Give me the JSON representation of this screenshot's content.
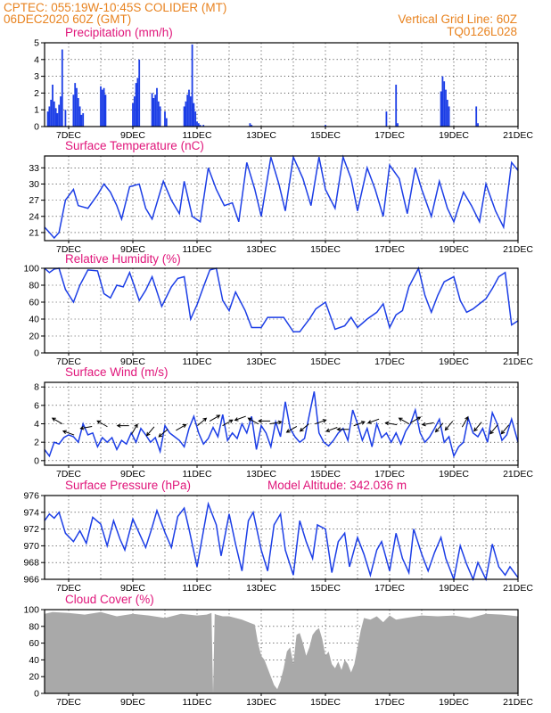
{
  "header": {
    "line1": "CPTEC:   055:19W-10:45S   COLIDER (MT)",
    "line2": "06DEC2020 60Z (GMT)",
    "grid_note": "Vertical Grid Line: 60Z",
    "code": "TQ0126L028"
  },
  "x_axis": {
    "start_day": 6.25,
    "end_day": 21.0,
    "date_labels": [
      {
        "day": 7,
        "label": "7DEC"
      },
      {
        "day": 9,
        "label": "9DEC"
      },
      {
        "day": 11,
        "label": "11DEC"
      },
      {
        "day": 13,
        "label": "13DEC"
      },
      {
        "day": 15,
        "label": "15DEC"
      },
      {
        "day": 17,
        "label": "17DEC"
      },
      {
        "day": 19,
        "label": "19DEC"
      },
      {
        "day": 21,
        "label": "21DEC"
      }
    ]
  },
  "colors": {
    "series": "#1c3ee6",
    "cloud": "#a9a9a9",
    "title": "#e0157a",
    "header": "#e8821e"
  },
  "chart_data": [
    {
      "type": "bar",
      "title": "Precipitation (mm/h)",
      "ylim": [
        0,
        5
      ],
      "yticks": [
        0,
        1,
        2,
        3,
        4,
        5
      ],
      "grid": true,
      "x": [
        6.35,
        6.4,
        6.45,
        6.5,
        6.55,
        6.6,
        6.65,
        6.7,
        6.75,
        6.8,
        6.9,
        7.15,
        7.2,
        7.25,
        7.3,
        7.35,
        7.4,
        7.45,
        8.0,
        8.05,
        8.1,
        8.15,
        9.0,
        9.05,
        9.1,
        9.15,
        9.2,
        9.6,
        9.65,
        9.7,
        9.75,
        9.8,
        9.85,
        10.0,
        10.05,
        10.6,
        10.65,
        10.7,
        10.75,
        10.8,
        10.85,
        10.9,
        10.95,
        11.0,
        11.05,
        11.1,
        11.2,
        12.65,
        12.7,
        15.0,
        16.9,
        17.2,
        17.25,
        18.6,
        18.65,
        18.7,
        18.75,
        18.8,
        18.85,
        19.7,
        19.75
      ],
      "values": [
        0.9,
        1.2,
        1.6,
        2.5,
        1.5,
        1.1,
        0.8,
        1.3,
        1.8,
        4.6,
        1.0,
        1.9,
        2.6,
        2.3,
        1.7,
        1.2,
        0.7,
        0.8,
        2.4,
        2.2,
        2.3,
        1.9,
        1.4,
        1.8,
        2.6,
        2.9,
        4.0,
        2.0,
        1.7,
        1.9,
        2.3,
        1.5,
        1.2,
        0.9,
        0.5,
        1.2,
        1.5,
        1.9,
        2.2,
        1.8,
        4.9,
        1.4,
        0.9,
        0.3,
        0.2,
        0.1,
        0.1,
        0.2,
        0.1,
        0.1,
        0.9,
        2.5,
        0.2,
        2.1,
        3.0,
        2.7,
        2.2,
        1.6,
        1.2,
        1.2,
        0.2
      ]
    },
    {
      "type": "line",
      "title": "Surface Temperature (nC)",
      "ylim": [
        19.5,
        35.2
      ],
      "yticks": [
        21,
        24,
        27,
        30,
        33
      ],
      "grid": true,
      "x": [
        6.25,
        6.4,
        6.55,
        6.7,
        6.9,
        7.15,
        7.3,
        7.6,
        7.9,
        8.1,
        8.3,
        8.5,
        8.65,
        8.9,
        9.2,
        9.4,
        9.6,
        9.95,
        10.2,
        10.45,
        10.6,
        10.85,
        11.1,
        11.35,
        11.6,
        11.85,
        12.1,
        12.3,
        12.55,
        12.8,
        13.0,
        13.3,
        13.55,
        13.75,
        14.0,
        14.3,
        14.55,
        14.8,
        15.0,
        15.3,
        15.55,
        15.8,
        16.0,
        16.3,
        16.55,
        16.8,
        17.0,
        17.3,
        17.55,
        17.8,
        18.0,
        18.3,
        18.55,
        18.8,
        19.0,
        19.3,
        19.55,
        19.8,
        20.0,
        20.3,
        20.55,
        20.8,
        21.0
      ],
      "values": [
        22.0,
        21.0,
        20.0,
        21.0,
        27.0,
        29.0,
        26.0,
        25.5,
        28.0,
        30.0,
        28.5,
        26.0,
        23.5,
        29.5,
        30.0,
        25.5,
        23.5,
        30.5,
        27.0,
        24.5,
        30.5,
        24.0,
        23.0,
        33.0,
        29.0,
        26.0,
        26.5,
        23.0,
        34.0,
        29.0,
        24.0,
        35.0,
        30.0,
        25.0,
        35.0,
        31.0,
        26.0,
        35.0,
        29.0,
        25.5,
        35.0,
        31.0,
        25.0,
        33.0,
        29.0,
        24.0,
        33.5,
        31.0,
        24.5,
        33.0,
        29.0,
        24.0,
        30.5,
        25.5,
        23.0,
        28.5,
        26.0,
        23.0,
        30.0,
        25.0,
        22.0,
        34.0,
        32.5
      ]
    },
    {
      "type": "line",
      "title": "Relative Humidity (%)",
      "ylim": [
        0,
        100
      ],
      "yticks": [
        0,
        20,
        40,
        60,
        80,
        100
      ],
      "grid": true,
      "x": [
        6.25,
        6.4,
        6.55,
        6.7,
        6.9,
        7.15,
        7.35,
        7.6,
        7.9,
        8.1,
        8.3,
        8.5,
        8.7,
        8.9,
        9.2,
        9.4,
        9.6,
        9.9,
        10.2,
        10.4,
        10.6,
        10.8,
        11.0,
        11.2,
        11.4,
        11.6,
        11.8,
        12.0,
        12.2,
        12.5,
        12.7,
        13.0,
        13.2,
        13.4,
        13.7,
        14.0,
        14.2,
        14.5,
        14.7,
        15.0,
        15.3,
        15.6,
        15.8,
        16.0,
        16.3,
        16.6,
        16.8,
        17.0,
        17.2,
        17.4,
        17.6,
        17.9,
        18.1,
        18.3,
        18.5,
        18.7,
        19.0,
        19.2,
        19.4,
        19.6,
        19.8,
        20.0,
        20.2,
        20.4,
        20.6,
        20.8,
        21.0
      ],
      "values": [
        100,
        95,
        99,
        100,
        75,
        60,
        80,
        98,
        97,
        70,
        65,
        80,
        78,
        95,
        62,
        74,
        90,
        55,
        78,
        88,
        90,
        40,
        57,
        78,
        98,
        100,
        62,
        50,
        72,
        50,
        30,
        30,
        42,
        42,
        42,
        25,
        25,
        40,
        52,
        60,
        28,
        32,
        42,
        30,
        40,
        48,
        58,
        30,
        45,
        50,
        78,
        100,
        68,
        48,
        68,
        84,
        90,
        62,
        48,
        52,
        58,
        64,
        76,
        90,
        95,
        33,
        38
      ]
    },
    {
      "type": "line",
      "title": "Surface Wind (m/s)",
      "ylim": [
        -0.5,
        8.5
      ],
      "yticks": [
        0,
        2,
        4,
        6,
        8
      ],
      "grid": true,
      "x": [
        6.25,
        6.4,
        6.55,
        6.7,
        6.85,
        7.0,
        7.15,
        7.3,
        7.45,
        7.6,
        7.75,
        7.9,
        8.05,
        8.2,
        8.35,
        8.5,
        8.65,
        8.8,
        8.95,
        9.1,
        9.25,
        9.4,
        9.55,
        9.7,
        9.85,
        10.0,
        10.15,
        10.3,
        10.45,
        10.6,
        10.75,
        10.9,
        11.05,
        11.2,
        11.35,
        11.5,
        11.65,
        11.8,
        11.95,
        12.1,
        12.25,
        12.4,
        12.55,
        12.7,
        12.85,
        13.0,
        13.15,
        13.3,
        13.45,
        13.6,
        13.75,
        13.9,
        14.05,
        14.2,
        14.35,
        14.5,
        14.65,
        14.8,
        14.95,
        15.1,
        15.25,
        15.4,
        15.55,
        15.7,
        15.85,
        16.0,
        16.15,
        16.3,
        16.45,
        16.6,
        16.75,
        16.9,
        17.05,
        17.2,
        17.35,
        17.5,
        17.65,
        17.8,
        17.95,
        18.1,
        18.25,
        18.4,
        18.55,
        18.7,
        18.85,
        19.0,
        19.15,
        19.3,
        19.45,
        19.6,
        19.75,
        19.9,
        20.05,
        20.2,
        20.35,
        20.5,
        20.65,
        20.8,
        21.0
      ],
      "values": [
        1.2,
        0.5,
        2.0,
        1.8,
        2.5,
        2.8,
        2.6,
        2.0,
        4.0,
        2.8,
        3.0,
        1.5,
        2.5,
        2.0,
        2.5,
        1.2,
        2.2,
        1.8,
        3.0,
        2.0,
        3.5,
        2.8,
        2.0,
        2.5,
        1.0,
        3.8,
        3.0,
        2.6,
        2.2,
        1.5,
        3.5,
        4.8,
        3.0,
        1.8,
        2.4,
        3.6,
        2.6,
        5.0,
        2.2,
        3.0,
        2.4,
        4.0,
        3.0,
        4.8,
        1.2,
        3.8,
        3.0,
        1.5,
        4.2,
        2.6,
        6.4,
        3.5,
        2.6,
        2.0,
        2.4,
        5.0,
        7.5,
        3.0,
        2.0,
        1.6,
        2.2,
        3.0,
        3.5,
        2.2,
        5.5,
        4.0,
        2.2,
        3.5,
        1.5,
        4.0,
        2.5,
        3.0,
        2.0,
        3.0,
        1.8,
        3.2,
        4.0,
        5.5,
        3.0,
        2.0,
        2.6,
        3.5,
        4.5,
        2.0,
        2.6,
        0.5,
        1.5,
        2.0,
        4.6,
        3.0,
        2.6,
        3.5,
        2.0,
        5.2,
        4.0,
        2.2,
        2.8,
        4.5,
        2.0
      ],
      "wind_arrows": [
        {
          "day": 6.65,
          "level": 4.3,
          "dir_deg": 300
        },
        {
          "day": 7.0,
          "level": 3.0,
          "dir_deg": 290
        },
        {
          "day": 7.55,
          "level": 3.6,
          "dir_deg": 260
        },
        {
          "day": 8.05,
          "level": 4.0,
          "dir_deg": 300
        },
        {
          "day": 8.7,
          "level": 3.8,
          "dir_deg": 270
        },
        {
          "day": 9.05,
          "level": 3.4,
          "dir_deg": 30
        },
        {
          "day": 9.55,
          "level": 3.2,
          "dir_deg": 220
        },
        {
          "day": 9.95,
          "level": 3.0,
          "dir_deg": 230
        },
        {
          "day": 10.5,
          "level": 3.6,
          "dir_deg": 60
        },
        {
          "day": 11.15,
          "level": 4.2,
          "dir_deg": 50
        },
        {
          "day": 11.55,
          "level": 4.6,
          "dir_deg": 60
        },
        {
          "day": 11.95,
          "level": 4.1,
          "dir_deg": 60
        },
        {
          "day": 12.35,
          "level": 4.6,
          "dir_deg": 250
        },
        {
          "day": 12.75,
          "level": 4.3,
          "dir_deg": 300
        },
        {
          "day": 13.1,
          "level": 4.3,
          "dir_deg": 270
        },
        {
          "day": 13.45,
          "level": 4.1,
          "dir_deg": 80
        },
        {
          "day": 13.95,
          "level": 3.4,
          "dir_deg": 240
        },
        {
          "day": 14.35,
          "level": 3.6,
          "dir_deg": 230
        },
        {
          "day": 14.85,
          "level": 4.2,
          "dir_deg": 70
        },
        {
          "day": 15.2,
          "level": 3.4,
          "dir_deg": 250
        },
        {
          "day": 15.55,
          "level": 3.4,
          "dir_deg": 270
        },
        {
          "day": 16.05,
          "level": 4.0,
          "dir_deg": 70
        },
        {
          "day": 16.5,
          "level": 4.3,
          "dir_deg": 250
        },
        {
          "day": 17.05,
          "level": 4.0,
          "dir_deg": 280
        },
        {
          "day": 17.45,
          "level": 4.3,
          "dir_deg": 300
        },
        {
          "day": 17.8,
          "level": 4.4,
          "dir_deg": 60
        },
        {
          "day": 18.2,
          "level": 4.0,
          "dir_deg": 260
        },
        {
          "day": 18.55,
          "level": 3.6,
          "dir_deg": 220
        },
        {
          "day": 18.85,
          "level": 3.8,
          "dir_deg": 220
        },
        {
          "day": 19.35,
          "level": 4.2,
          "dir_deg": 30
        },
        {
          "day": 19.75,
          "level": 3.7,
          "dir_deg": 220
        },
        {
          "day": 20.25,
          "level": 3.4,
          "dir_deg": 220
        },
        {
          "day": 20.6,
          "level": 3.4,
          "dir_deg": 220
        }
      ]
    },
    {
      "type": "line",
      "title": "Surface Pressure (hPa)",
      "annotation": "Model Altitude: 342.036 m",
      "ylim": [
        966,
        976
      ],
      "yticks": [
        966,
        968,
        970,
        972,
        974,
        976
      ],
      "grid": true,
      "x": [
        6.25,
        6.4,
        6.55,
        6.7,
        6.9,
        7.15,
        7.35,
        7.55,
        7.75,
        8.0,
        8.2,
        8.4,
        8.6,
        8.75,
        9.0,
        9.2,
        9.4,
        9.6,
        9.75,
        10.0,
        10.2,
        10.4,
        10.6,
        10.75,
        11.0,
        11.2,
        11.35,
        11.6,
        11.75,
        12.0,
        12.2,
        12.4,
        12.6,
        12.75,
        13.0,
        13.2,
        13.4,
        13.6,
        13.75,
        14.0,
        14.2,
        14.4,
        14.6,
        14.75,
        15.0,
        15.2,
        15.4,
        15.6,
        15.75,
        16.0,
        16.2,
        16.4,
        16.6,
        16.75,
        17.0,
        17.2,
        17.4,
        17.6,
        17.75,
        18.0,
        18.2,
        18.4,
        18.6,
        18.75,
        19.0,
        19.2,
        19.4,
        19.6,
        19.75,
        20.0,
        20.2,
        20.4,
        20.6,
        20.75,
        21.0
      ],
      "values": [
        973.0,
        973.8,
        973.3,
        974.0,
        971.5,
        970.5,
        971.8,
        970.3,
        973.4,
        972.6,
        970.0,
        973.0,
        970.8,
        969.5,
        973.2,
        971.5,
        969.8,
        972.2,
        974.2,
        971.6,
        969.8,
        973.5,
        974.5,
        972.0,
        967.5,
        971.8,
        975.0,
        972.5,
        968.8,
        973.8,
        970.2,
        967.0,
        973.0,
        974.0,
        969.5,
        967.0,
        972.5,
        973.8,
        969.5,
        966.5,
        973.0,
        970.5,
        968.5,
        972.5,
        972.0,
        966.8,
        970.5,
        971.5,
        967.5,
        971.0,
        969.0,
        966.5,
        969.5,
        970.5,
        967.0,
        971.5,
        968.5,
        966.8,
        972.0,
        969.0,
        967.0,
        969.2,
        971.0,
        968.5,
        966.0,
        970.0,
        967.8,
        966.0,
        968.0,
        965.5,
        970.2,
        967.5,
        966.5,
        967.5,
        966.2
      ]
    },
    {
      "type": "area",
      "title": "Cloud Cover (%)",
      "ylim": [
        0,
        100
      ],
      "yticks": [
        0,
        20,
        40,
        60,
        80,
        100
      ],
      "grid": true,
      "x": [
        6.25,
        6.5,
        7.0,
        7.5,
        8.0,
        8.5,
        9.0,
        9.5,
        10.0,
        10.5,
        11.0,
        11.3,
        11.45,
        11.5,
        11.55,
        11.6,
        11.8,
        12.0,
        12.2,
        12.4,
        12.6,
        12.8,
        12.9,
        13.0,
        13.1,
        13.2,
        13.3,
        13.4,
        13.5,
        13.6,
        13.7,
        13.8,
        13.9,
        14.0,
        14.1,
        14.2,
        14.3,
        14.4,
        14.5,
        14.6,
        14.7,
        14.8,
        14.9,
        15.0,
        15.1,
        15.2,
        15.3,
        15.4,
        15.5,
        15.6,
        15.7,
        15.8,
        15.9,
        16.0,
        16.1,
        16.2,
        16.4,
        16.6,
        16.8,
        17.0,
        17.2,
        17.5,
        18.0,
        18.5,
        19.0,
        19.5,
        20.0,
        20.5,
        21.0
      ],
      "values": [
        95,
        97,
        96,
        94,
        97,
        92,
        95,
        93,
        90,
        95,
        93,
        94,
        96,
        0,
        95,
        94,
        92,
        92,
        90,
        88,
        85,
        82,
        60,
        45,
        40,
        30,
        20,
        10,
        5,
        15,
        30,
        50,
        55,
        35,
        70,
        72,
        60,
        45,
        55,
        70,
        75,
        78,
        65,
        45,
        50,
        35,
        30,
        38,
        28,
        40,
        35,
        25,
        35,
        55,
        75,
        90,
        88,
        92,
        85,
        93,
        88,
        90,
        93,
        92,
        93,
        90,
        95,
        94,
        92
      ]
    }
  ]
}
